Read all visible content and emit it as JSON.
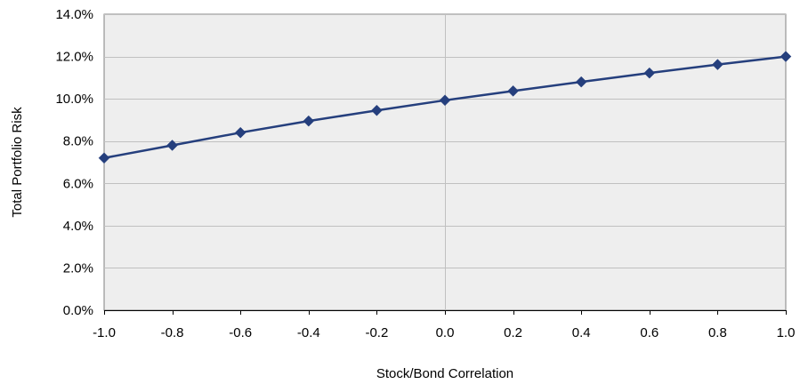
{
  "chart_data": {
    "type": "line",
    "title": "",
    "xlabel": "Stock/Bond Correlation",
    "ylabel": "Total Portfolio Risk",
    "x": [
      -1.0,
      -0.8,
      -0.6,
      -0.4,
      -0.2,
      0.0,
      0.2,
      0.4,
      0.6,
      0.8,
      1.0
    ],
    "x_tick_labels": [
      "-1.0",
      "-0.8",
      "-0.6",
      "-0.4",
      "-0.2",
      "0.0",
      "0.2",
      "0.4",
      "0.6",
      "0.8",
      "1.0"
    ],
    "y_tick_labels": [
      "0.0%",
      "2.0%",
      "4.0%",
      "6.0%",
      "8.0%",
      "10.0%",
      "12.0%",
      "14.0%"
    ],
    "y_ticks": [
      0,
      2,
      4,
      6,
      8,
      10,
      12,
      14
    ],
    "xlim": [
      -1.0,
      1.0
    ],
    "ylim": [
      0,
      14
    ],
    "series": [
      {
        "values": [
          7.2,
          7.8,
          8.4,
          8.95,
          9.45,
          9.93,
          10.37,
          10.8,
          11.22,
          11.62,
          12.0
        ]
      }
    ],
    "grid": "horizontal and vertical at zero",
    "legend": "none",
    "colors": {
      "series": "#253f7d",
      "plot_background": "#eeeeee",
      "gridline": "#c0c0c0"
    }
  }
}
